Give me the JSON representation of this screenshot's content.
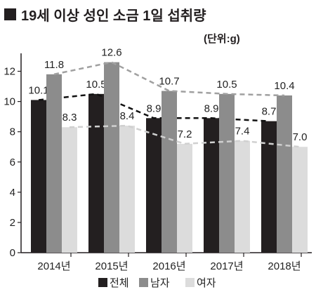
{
  "chart_data": {
    "type": "bar",
    "title": "19세 이상 성인 소금 1일 섭취량",
    "unit_label": "(단위:g)",
    "categories": [
      "2014년",
      "2015년",
      "2016년",
      "2017년",
      "2018년"
    ],
    "ylim": [
      0,
      13
    ],
    "yticks": [
      0,
      2,
      4,
      6,
      8,
      10,
      12
    ],
    "grid": false,
    "legend_position": "bottom",
    "series": [
      {
        "name": "전체",
        "values": [
          10.1,
          10.5,
          8.9,
          8.9,
          8.7
        ],
        "labels": [
          "10.1",
          "10.5",
          "8.9",
          "8.9",
          "8.7"
        ],
        "color": "#231f20",
        "trend_color": "#111111"
      },
      {
        "name": "남자",
        "values": [
          11.8,
          12.6,
          10.7,
          10.5,
          10.4
        ],
        "labels": [
          "11.8",
          "12.6",
          "10.7",
          "10.5",
          "10.4"
        ],
        "color": "#8c8c8c",
        "trend_color": "#a0a0a0"
      },
      {
        "name": "여자",
        "values": [
          8.3,
          8.4,
          7.2,
          7.4,
          7.0
        ],
        "labels": [
          "8.3",
          "8.4",
          "7.2",
          "7.4",
          "7.0"
        ],
        "color": "#dcdcdc",
        "trend_color": "#d0d0d0"
      }
    ],
    "trend_lines": "dashed"
  }
}
